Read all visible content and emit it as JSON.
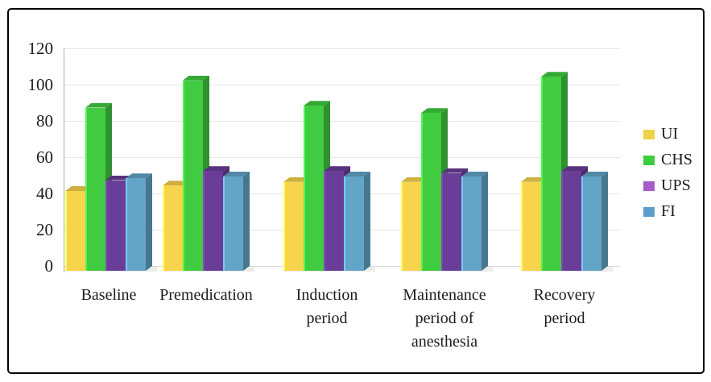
{
  "figure": {
    "background": "#ffffff",
    "border_color": "#000000"
  },
  "chart_data": {
    "type": "bar",
    "style": "3d-clustered-column",
    "title": "",
    "xlabel": "",
    "ylabel": "",
    "ylim": [
      0,
      120
    ],
    "y_ticks": [
      0,
      20,
      40,
      60,
      80,
      100,
      120
    ],
    "grid": true,
    "legend_position": "right",
    "categories": [
      "Baseline",
      "Premedication",
      "Induction\nperiod",
      "Maintenance\nperiod of\nanesthesia",
      "Recovery\nperiod"
    ],
    "series": [
      {
        "name": "UI",
        "color": "#f7d44c",
        "legend_color": "#f0d24a",
        "values": [
          44,
          47,
          49,
          49,
          49
        ]
      },
      {
        "name": "CHS",
        "color": "#41cb41",
        "legend_color": "#3ccc3c",
        "values": [
          90,
          105,
          91,
          87,
          107
        ]
      },
      {
        "name": "UPS",
        "color": "#6a3d98",
        "legend_color": "#a45cc6",
        "values": [
          50,
          55,
          55,
          54,
          55
        ]
      },
      {
        "name": "FI",
        "color": "#63a5c7",
        "legend_color": "#5b9ec9",
        "values": [
          51,
          52,
          52,
          52,
          52
        ]
      }
    ]
  }
}
